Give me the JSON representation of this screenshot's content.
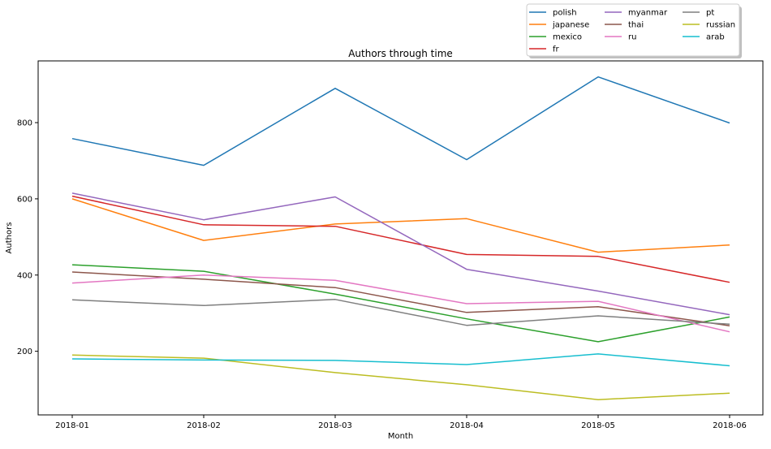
{
  "chart_data": {
    "type": "line",
    "title": "Authors through time",
    "xlabel": "Month",
    "ylabel": "Authors",
    "categories": [
      "2018-01",
      "2018-02",
      "2018-03",
      "2018-04",
      "2018-05",
      "2018-06"
    ],
    "ylim": [
      33,
      962
    ],
    "yticks": [
      200,
      400,
      600,
      800
    ],
    "grid": false,
    "legend": {
      "position": "top-right",
      "columns": 3
    },
    "series": [
      {
        "name": "polish",
        "color": "#1f77b4",
        "values": [
          758,
          688,
          890,
          703,
          920,
          799
        ]
      },
      {
        "name": "japanese",
        "color": "#ff7f0e",
        "values": [
          600,
          491,
          534,
          548,
          460,
          479
        ]
      },
      {
        "name": "mexico",
        "color": "#2ca02c",
        "values": [
          427,
          410,
          350,
          285,
          225,
          290
        ]
      },
      {
        "name": "fr",
        "color": "#d62728",
        "values": [
          607,
          532,
          528,
          454,
          449,
          381
        ]
      },
      {
        "name": "myanmar",
        "color": "#9467bd",
        "values": [
          615,
          545,
          605,
          415,
          358,
          296
        ]
      },
      {
        "name": "thai",
        "color": "#8c564b",
        "values": [
          408,
          389,
          367,
          302,
          317,
          267
        ]
      },
      {
        "name": "ru",
        "color": "#e377c2",
        "values": [
          379,
          400,
          386,
          325,
          331,
          251
        ]
      },
      {
        "name": "pt",
        "color": "#7f7f7f",
        "values": [
          335,
          320,
          336,
          268,
          293,
          271
        ]
      },
      {
        "name": "russian",
        "color": "#bcbd22",
        "values": [
          190,
          182,
          144,
          112,
          73,
          90
        ]
      },
      {
        "name": "arab",
        "color": "#17becf",
        "values": [
          180,
          177,
          176,
          165,
          193,
          162
        ]
      }
    ]
  }
}
